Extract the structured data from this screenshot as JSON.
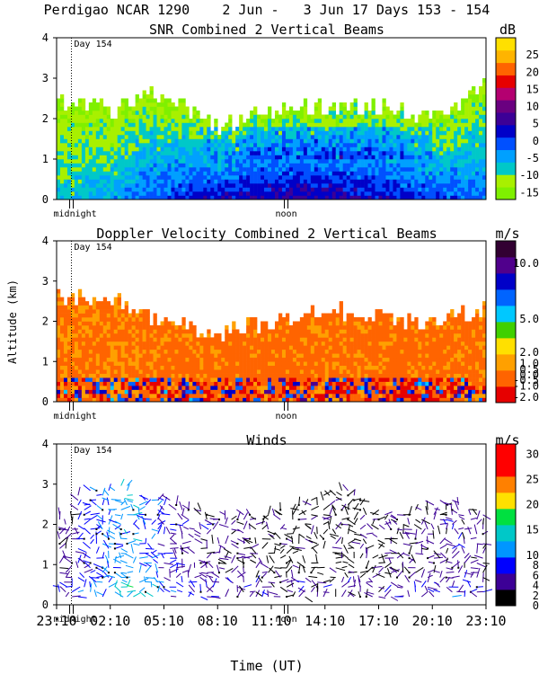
{
  "header": "Perdigao NCAR 1290    2 Jun -   3 Jun 17 Days 153 - 154",
  "x_axis": {
    "label": "Time (UT)",
    "ticks": [
      "23:10",
      "02:10",
      "05:10",
      "08:10",
      "11:10",
      "14:10",
      "17:10",
      "20:10",
      "23:10"
    ],
    "tick_hours": [
      0,
      3,
      6,
      9,
      12,
      15,
      18,
      21,
      24
    ],
    "range_hours": [
      0,
      24
    ],
    "markers": {
      "midnight": "midnight",
      "noon": "noon",
      "day": "Day 154"
    },
    "midnight_hour": 0.83,
    "noon_hour": 12.83
  },
  "shared_ylabel": "Altitude (km)",
  "colors": {
    "snr": [
      "#7ff000",
      "#a8f000",
      "#00c8c8",
      "#00a0ff",
      "#0050ff",
      "#0000c8",
      "#3c0096",
      "#6a0080",
      "#b40070",
      "#e60000",
      "#ff6400",
      "#ffb400",
      "#ffe000"
    ],
    "velocity": [
      "#e60000",
      "#ff6400",
      "#ffa000",
      "#ffe000",
      "#40d000",
      "#00c8ff",
      "#0064ff",
      "#0000c8",
      "#50008c",
      "#320032"
    ],
    "wind": [
      "#000000",
      "#3c0096",
      "#0000ff",
      "#0096ff",
      "#00c8c8",
      "#00e040",
      "#ffe000",
      "#ff8000",
      "#ff0000",
      "#ff0000"
    ]
  },
  "chart_data": [
    {
      "id": "snr",
      "type": "heatmap",
      "title": "SNR Combined 2 Vertical Beams",
      "units": "dB",
      "xlabel": "",
      "ylabel": "",
      "ylim": [
        0,
        4
      ],
      "yticks": [
        "0",
        "1",
        "2",
        "3",
        "4"
      ],
      "colorbar_labels": [
        "-15",
        "-10",
        "-5",
        "0",
        "5",
        "10",
        "15",
        "20",
        "25"
      ],
      "colorbar_range": [
        -17,
        30
      ],
      "summary": [
        {
          "hour": 0,
          "top_km": 2.4,
          "value_near_ground_db": -8
        },
        {
          "hour": 3,
          "top_km": 2.2,
          "value_near_ground_db": -5
        },
        {
          "hour": 6,
          "top_km": 2.7,
          "value_near_ground_db": 0
        },
        {
          "hour": 9,
          "top_km": 1.8,
          "value_near_ground_db": 3
        },
        {
          "hour": 12,
          "top_km": 2.2,
          "value_near_ground_db": 5
        },
        {
          "hour": 15,
          "top_km": 2.3,
          "value_near_ground_db": 5
        },
        {
          "hour": 18,
          "top_km": 2.3,
          "value_near_ground_db": 3
        },
        {
          "hour": 21,
          "top_km": 2.0,
          "value_near_ground_db": 0
        },
        {
          "hour": 24,
          "top_km": 2.8,
          "value_near_ground_db": -2
        }
      ]
    },
    {
      "id": "velocity",
      "type": "heatmap",
      "title": "Doppler Velocity Combined 2 Vertical Beams",
      "units": "m/s",
      "xlabel": "",
      "ylabel": "Altitude (km)",
      "ylim": [
        0,
        4
      ],
      "yticks": [
        "0",
        "1",
        "2",
        "3",
        "4"
      ],
      "colorbar_labels": [
        "-2.0",
        "-1.0",
        "-0.5",
        "0.0",
        "0.5",
        "1.0",
        "2.0",
        "5.0",
        "10.0"
      ],
      "colorbar_range": [
        -2.5,
        12
      ],
      "summary": [
        {
          "hour": 0,
          "top_km": 2.6,
          "value_ms": 0.2
        },
        {
          "hour": 3,
          "top_km": 2.6,
          "value_ms": 0.3
        },
        {
          "hour": 6,
          "top_km": 2.0,
          "value_ms": 0.1
        },
        {
          "hour": 9,
          "top_km": 1.7,
          "value_ms": 0.0
        },
        {
          "hour": 12,
          "top_km": 2.0,
          "value_ms": 0.0
        },
        {
          "hour": 15,
          "top_km": 2.3,
          "value_ms": 0.1
        },
        {
          "hour": 18,
          "top_km": 2.1,
          "value_ms": 0.0
        },
        {
          "hour": 21,
          "top_km": 2.0,
          "value_ms": 0.0
        },
        {
          "hour": 24,
          "top_km": 2.3,
          "value_ms": 0.2
        }
      ]
    },
    {
      "id": "winds",
      "type": "scatter",
      "title": "Winds",
      "units": "m/s",
      "xlabel": "Time (UT)",
      "ylabel": "",
      "ylim": [
        0,
        4
      ],
      "yticks": [
        "0",
        "1",
        "2",
        "3",
        "4"
      ],
      "colorbar_labels": [
        "0",
        "2",
        "4",
        "6",
        "8",
        "10",
        "15",
        "20",
        "25",
        "30"
      ],
      "colorbar_range": [
        0,
        32
      ],
      "summary": [
        {
          "hour": 1,
          "max_km": 2.8,
          "speed_ms": 6
        },
        {
          "hour": 4,
          "max_km": 3.0,
          "speed_ms": 12
        },
        {
          "hour": 7,
          "max_km": 2.5,
          "speed_ms": 5
        },
        {
          "hour": 10,
          "max_km": 2.2,
          "speed_ms": 4
        },
        {
          "hour": 13,
          "max_km": 2.5,
          "speed_ms": 2
        },
        {
          "hour": 16,
          "max_km": 2.9,
          "speed_ms": 2
        },
        {
          "hour": 19,
          "max_km": 2.3,
          "speed_ms": 3
        },
        {
          "hour": 22,
          "max_km": 2.7,
          "speed_ms": 5
        },
        {
          "hour": 24,
          "max_km": 2.3,
          "speed_ms": 4
        }
      ]
    }
  ]
}
